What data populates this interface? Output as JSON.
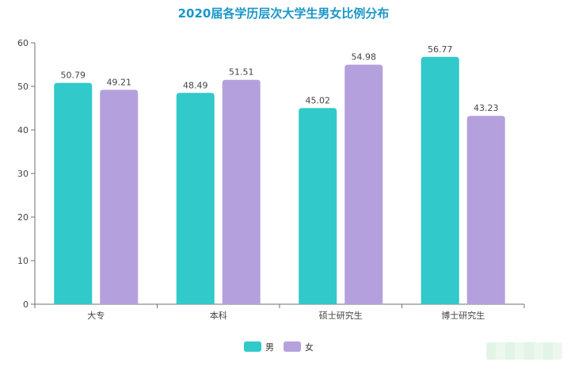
{
  "chart_data": {
    "type": "bar",
    "title": "2020届各学历层次大学生男女比例分布",
    "categories": [
      "大专",
      "本科",
      "硕士研究生",
      "博士研究生"
    ],
    "series": [
      {
        "name": "男",
        "values": [
          50.79,
          48.49,
          45.02,
          56.77
        ],
        "color": "#31c9c9"
      },
      {
        "name": "女",
        "values": [
          49.21,
          51.51,
          54.98,
          43.23
        ],
        "color": "#b5a0de"
      }
    ],
    "yticks": [
      0,
      10,
      20,
      30,
      40,
      50,
      60
    ],
    "ylim": [
      0,
      60
    ],
    "xlabel": "",
    "ylabel": "",
    "grid": false,
    "legend": "bottom-center"
  },
  "colors": {
    "title": "#1a96c8",
    "axis": "#6e7079"
  }
}
